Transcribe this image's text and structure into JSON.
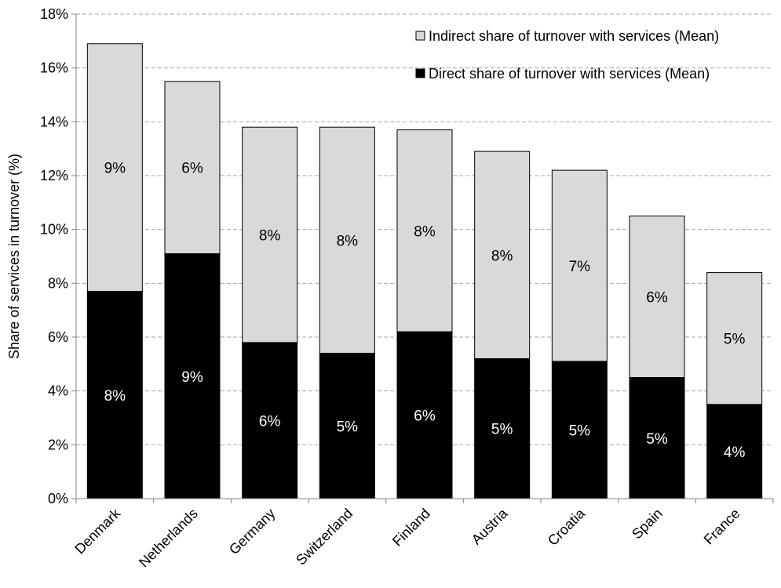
{
  "chart_data": {
    "type": "bar",
    "stacked": true,
    "title": "",
    "xlabel": "",
    "ylabel": "Share of services in turnover (%)",
    "ylim": [
      0,
      18
    ],
    "yticks": [
      0,
      2,
      4,
      6,
      8,
      10,
      12,
      14,
      16,
      18
    ],
    "ytick_labels": [
      "0%",
      "2%",
      "4%",
      "6%",
      "8%",
      "10%",
      "12%",
      "14%",
      "16%",
      "18%"
    ],
    "grid": "horizontal dashed",
    "legend_position": "top-right",
    "categories": [
      "Denmark",
      "Netherlands",
      "Germany",
      "Switzerland",
      "Finland",
      "Austria",
      "Croatia",
      "Spain",
      "France"
    ],
    "series": [
      {
        "name": "Direct share of turnover with services (Mean)",
        "color": "#000000",
        "label_color": "#ffffff",
        "values": [
          7.7,
          9.1,
          5.8,
          5.4,
          6.2,
          5.2,
          5.1,
          4.5,
          3.5
        ],
        "labels": [
          "8%",
          "9%",
          "6%",
          "5%",
          "6%",
          "5%",
          "5%",
          "5%",
          "4%"
        ]
      },
      {
        "name": "Indirect share of turnover with services (Mean)",
        "color": "#d9d9d9",
        "label_color": "#000000",
        "values": [
          9.2,
          6.4,
          8.0,
          8.4,
          7.5,
          7.7,
          7.1,
          6.0,
          4.9
        ],
        "labels": [
          "9%",
          "6%",
          "8%",
          "8%",
          "8%",
          "8%",
          "7%",
          "6%",
          "5%"
        ]
      }
    ]
  }
}
